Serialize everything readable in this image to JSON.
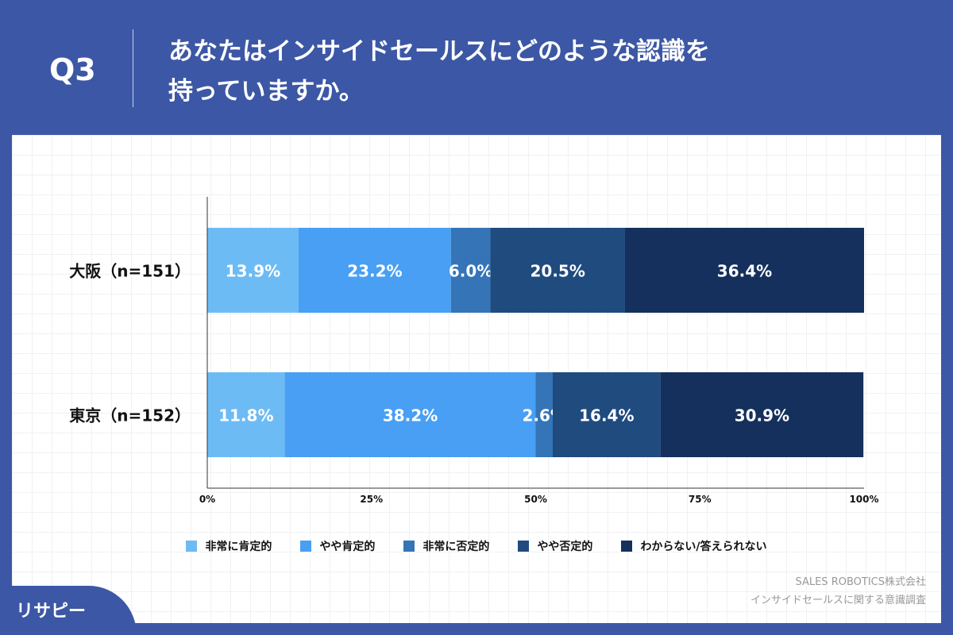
{
  "header": {
    "q": "Q3",
    "title_line1": "あなたはインサイドセールスにどのような認識を",
    "title_line2": "持っていますか。"
  },
  "chart_data": {
    "type": "bar",
    "orientation": "horizontal",
    "stacked": true,
    "categories": [
      "大阪（n=151）",
      "東京（n=152）"
    ],
    "series": [
      {
        "name": "非常に肯定的",
        "color": "#6dbbf4",
        "values": [
          13.9,
          11.8
        ]
      },
      {
        "name": "やや肯定的",
        "color": "#489ff3",
        "values": [
          23.2,
          38.2
        ]
      },
      {
        "name": "非常に否定的",
        "color": "#3474b7",
        "values": [
          6.0,
          2.6
        ]
      },
      {
        "name": "やや否定的",
        "color": "#1f4b7f",
        "values": [
          20.5,
          16.4
        ]
      },
      {
        "name": "わからない/答えられない",
        "color": "#15305d",
        "values": [
          36.4,
          30.9
        ]
      }
    ],
    "xlim": [
      0,
      100
    ],
    "xticks": [
      "0%",
      "25%",
      "50%",
      "75%",
      "100%"
    ],
    "grid": false,
    "legend": "bottom"
  },
  "source": {
    "line1": "SALES ROBOTICS株式会社",
    "line2": "インサイドセールスに関する意識調査"
  },
  "logo": "リサピー"
}
